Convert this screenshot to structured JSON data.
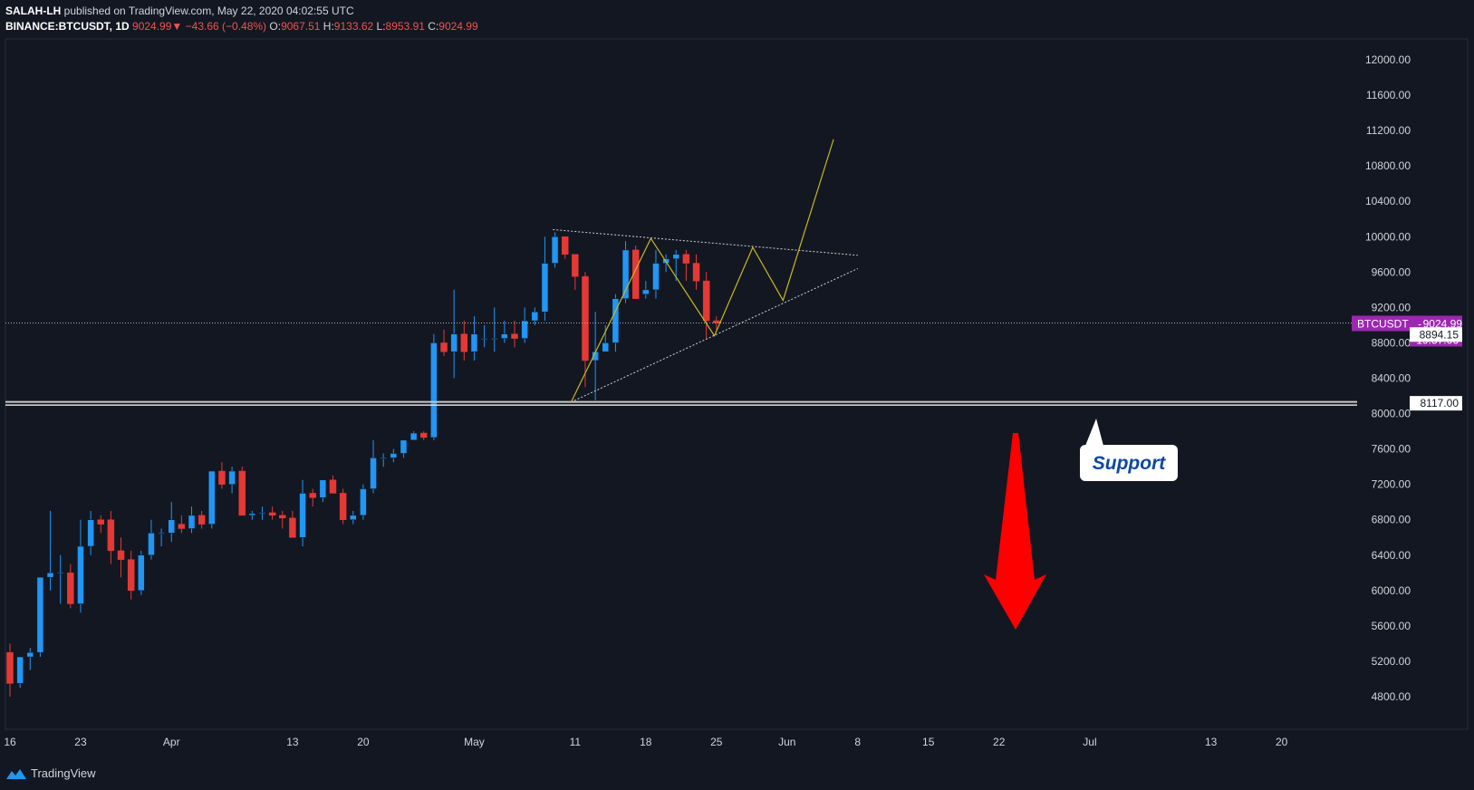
{
  "header": {
    "author": "SALAH-LH",
    "published_text": "published on TradingView.com, May 22, 2020 04:02:55 UTC",
    "symbol": "BINANCE:BTCUSDT, 1D",
    "last": "9024.99",
    "change_arrow": "▼",
    "change": "−43.66 (−0.48%)",
    "o_label": "O:",
    "o_value": "9067.51",
    "h_label": "H:",
    "h_value": "9133.62",
    "l_label": "L:",
    "l_value": "8953.91",
    "c_label": "C:",
    "c_value": "9024.99"
  },
  "footer": {
    "brand": "TradingView",
    "logo_icon": "tradingview-logo-icon"
  },
  "colors": {
    "background": "#131722",
    "up": "#2196f3",
    "down": "#e53935",
    "wedge": "#d0d0d0",
    "projection": "#c8b820",
    "support": "#c8c8c8",
    "arrow": "#ff0000",
    "badge": "#9c27b0",
    "callout_text": "#0d47a1"
  },
  "chart_data": {
    "type": "candlestick",
    "symbol": "BTCUSDT",
    "timeframe": "1D",
    "ylim": [
      4800,
      12000
    ],
    "yticks": [
      "12000.00",
      "11600.00",
      "11200.00",
      "10800.00",
      "10400.00",
      "10000.00",
      "9600.00",
      "9200.00",
      "8800.00",
      "8400.00",
      "8000.00",
      "7600.00",
      "7200.00",
      "6800.00",
      "6400.00",
      "6000.00",
      "5600.00",
      "5200.00",
      "4800.00"
    ],
    "xticks": [
      {
        "label": "16",
        "day": 0
      },
      {
        "label": "23",
        "day": 7
      },
      {
        "label": "Apr",
        "day": 16
      },
      {
        "label": "13",
        "day": 28
      },
      {
        "label": "20",
        "day": 35
      },
      {
        "label": "May",
        "day": 46
      },
      {
        "label": "11",
        "day": 56
      },
      {
        "label": "18",
        "day": 63
      },
      {
        "label": "25",
        "day": 70
      },
      {
        "label": "Jun",
        "day": 77
      },
      {
        "label": "8",
        "day": 84
      },
      {
        "label": "15",
        "day": 91
      },
      {
        "label": "22",
        "day": 98
      },
      {
        "label": "Jul",
        "day": 107
      },
      {
        "label": "13",
        "day": 119
      },
      {
        "label": "20",
        "day": 126
      }
    ],
    "candles": [
      [
        5300,
        5400,
        4800,
        4950
      ],
      [
        4950,
        5250,
        4900,
        5250
      ],
      [
        5250,
        5350,
        5100,
        5300
      ],
      [
        5300,
        6150,
        5250,
        6150
      ],
      [
        6150,
        6900,
        6000,
        6200
      ],
      [
        6200,
        6400,
        5850,
        6200
      ],
      [
        6200,
        6300,
        5800,
        5850
      ],
      [
        5850,
        6800,
        5750,
        6500
      ],
      [
        6500,
        6900,
        6400,
        6800
      ],
      [
        6800,
        6850,
        6650,
        6750
      ],
      [
        6800,
        6900,
        6300,
        6450
      ],
      [
        6450,
        6600,
        6150,
        6350
      ],
      [
        6350,
        6450,
        5900,
        6000
      ],
      [
        6000,
        6450,
        5950,
        6400
      ],
      [
        6400,
        6800,
        6350,
        6650
      ],
      [
        6650,
        6700,
        6500,
        6650
      ],
      [
        6650,
        7000,
        6550,
        6800
      ],
      [
        6750,
        6850,
        6650,
        6700
      ],
      [
        6700,
        6950,
        6650,
        6850
      ],
      [
        6850,
        6900,
        6700,
        6750
      ],
      [
        6750,
        7300,
        6700,
        7350
      ],
      [
        7350,
        7450,
        7150,
        7200
      ],
      [
        7200,
        7400,
        7100,
        7350
      ],
      [
        7350,
        7400,
        6900,
        6850
      ],
      [
        6850,
        6900,
        6800,
        6870
      ],
      [
        6870,
        6950,
        6800,
        6880
      ],
      [
        6880,
        6950,
        6800,
        6850
      ],
      [
        6850,
        6900,
        6700,
        6820
      ],
      [
        6820,
        6900,
        6600,
        6600
      ],
      [
        6600,
        7250,
        6500,
        7100
      ],
      [
        7100,
        7150,
        6950,
        7050
      ],
      [
        7050,
        7250,
        7000,
        7250
      ],
      [
        7250,
        7300,
        7100,
        7100
      ],
      [
        7100,
        7150,
        6750,
        6800
      ],
      [
        6800,
        6900,
        6750,
        6850
      ],
      [
        6850,
        7200,
        6800,
        7150
      ],
      [
        7150,
        7700,
        7100,
        7500
      ],
      [
        7500,
        7550,
        7400,
        7500
      ],
      [
        7500,
        7600,
        7450,
        7550
      ],
      [
        7550,
        7700,
        7500,
        7700
      ],
      [
        7700,
        7800,
        7700,
        7780
      ],
      [
        7780,
        7800,
        7700,
        7730
      ],
      [
        7730,
        8900,
        7700,
        8800
      ],
      [
        8800,
        8950,
        8650,
        8700
      ],
      [
        8700,
        9400,
        8400,
        8900
      ],
      [
        8900,
        9050,
        8600,
        8700
      ],
      [
        8700,
        9100,
        8600,
        8900
      ],
      [
        8850,
        9000,
        8750,
        8850
      ],
      [
        8850,
        9200,
        8700,
        8850
      ],
      [
        8850,
        9050,
        8800,
        8900
      ],
      [
        8900,
        9050,
        8750,
        8850
      ],
      [
        8850,
        9200,
        8800,
        9050
      ],
      [
        9050,
        9200,
        9000,
        9150
      ],
      [
        9150,
        10000,
        9050,
        9700
      ],
      [
        9700,
        10050,
        9650,
        10000
      ],
      [
        10000,
        10000,
        9750,
        9800
      ],
      [
        9800,
        9800,
        9400,
        9550
      ],
      [
        9550,
        9600,
        8300,
        8600
      ],
      [
        8600,
        9150,
        8150,
        8700
      ],
      [
        8700,
        9000,
        8700,
        8800
      ],
      [
        8800,
        9350,
        8700,
        9300
      ],
      [
        9300,
        9950,
        9250,
        9850
      ],
      [
        9850,
        9900,
        9300,
        9300
      ],
      [
        9350,
        9500,
        9300,
        9400
      ],
      [
        9400,
        9850,
        9300,
        9700
      ],
      [
        9700,
        9800,
        9600,
        9750
      ],
      [
        9750,
        9850,
        9500,
        9800
      ],
      [
        9800,
        9850,
        9500,
        9700
      ],
      [
        9700,
        9800,
        9400,
        9500
      ],
      [
        9500,
        9600,
        8850,
        9050
      ],
      [
        9050,
        9100,
        8950,
        9025
      ]
    ],
    "current_price_label": "BTCUSDT",
    "current_price": "9024.99",
    "countdown": "19:57:06",
    "marked_price": "8894.15",
    "support_price": "8117.00",
    "support_label": "Support"
  }
}
